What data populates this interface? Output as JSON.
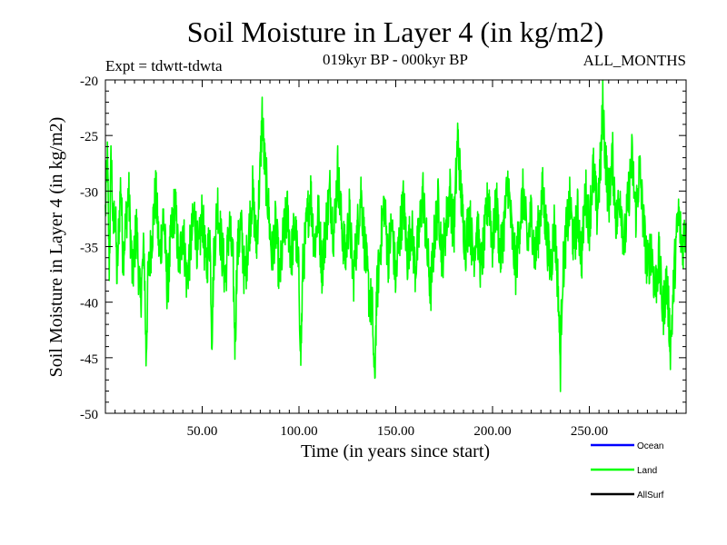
{
  "chart_data": {
    "type": "line",
    "title": "Soil Moisture in Layer 4 (in kg/m2)",
    "subtitle_left": "Expt = tdwtt-tdwta",
    "subtitle_center": "019kyr BP - 000kyr BP",
    "subtitle_right": "ALL_MONTHS",
    "xlabel": "Time (in years since start)",
    "ylabel": "Soil Moisture in Layer 4 (in kg/m2)",
    "xlim": [
      0,
      300
    ],
    "ylim": [
      -50,
      -20
    ],
    "xticks": [
      50,
      100,
      150,
      200,
      250
    ],
    "xtick_labels": [
      "50.00",
      "100.00",
      "150.00",
      "200.00",
      "250.00"
    ],
    "yticks": [
      -20,
      -25,
      -30,
      -35,
      -40,
      -45,
      -50
    ],
    "ytick_labels": [
      "-20",
      "-25",
      "-30",
      "-35",
      "-40",
      "-45",
      "-50"
    ],
    "legend": [
      {
        "name": "Ocean",
        "color": "#0000ff"
      },
      {
        "name": "Land",
        "color": "#00ff00"
      },
      {
        "name": "AllSurf",
        "color": "#000000"
      }
    ],
    "series": [
      {
        "name": "Land",
        "color": "#00ff00",
        "anchors": [
          [
            0,
            -32
          ],
          [
            1,
            -27
          ],
          [
            2,
            -37
          ],
          [
            3,
            -26
          ],
          [
            4,
            -34
          ],
          [
            5,
            -31
          ],
          [
            6,
            -38
          ],
          [
            7,
            -33
          ],
          [
            8,
            -29
          ],
          [
            9,
            -36
          ],
          [
            10,
            -34
          ],
          [
            12,
            -30
          ],
          [
            14,
            -38
          ],
          [
            16,
            -33
          ],
          [
            18,
            -40
          ],
          [
            20,
            -35
          ],
          [
            21,
            -45
          ],
          [
            22,
            -38
          ],
          [
            24,
            -34
          ],
          [
            26,
            -30
          ],
          [
            28,
            -36
          ],
          [
            30,
            -32
          ],
          [
            32,
            -39
          ],
          [
            34,
            -34
          ],
          [
            36,
            -31
          ],
          [
            38,
            -37
          ],
          [
            40,
            -33
          ],
          [
            42,
            -38
          ],
          [
            44,
            -35
          ],
          [
            46,
            -32
          ],
          [
            48,
            -36
          ],
          [
            50,
            -32
          ],
          [
            52,
            -37
          ],
          [
            54,
            -34
          ],
          [
            55,
            -43
          ],
          [
            56,
            -36
          ],
          [
            58,
            -31
          ],
          [
            60,
            -35
          ],
          [
            62,
            -38
          ],
          [
            64,
            -33
          ],
          [
            66,
            -37
          ],
          [
            67,
            -44
          ],
          [
            68,
            -36
          ],
          [
            70,
            -33
          ],
          [
            72,
            -38
          ],
          [
            74,
            -34
          ],
          [
            76,
            -30
          ],
          [
            78,
            -35
          ],
          [
            80,
            -28
          ],
          [
            81,
            -23
          ],
          [
            82,
            -27
          ],
          [
            84,
            -31
          ],
          [
            86,
            -36
          ],
          [
            88,
            -33
          ],
          [
            90,
            -38
          ],
          [
            92,
            -34
          ],
          [
            94,
            -32
          ],
          [
            96,
            -36
          ],
          [
            98,
            -33
          ],
          [
            100,
            -38
          ],
          [
            101,
            -45
          ],
          [
            102,
            -37
          ],
          [
            104,
            -33
          ],
          [
            106,
            -30
          ],
          [
            108,
            -35
          ],
          [
            110,
            -32
          ],
          [
            112,
            -37
          ],
          [
            114,
            -33
          ],
          [
            116,
            -30
          ],
          [
            118,
            -34
          ],
          [
            120,
            -28
          ],
          [
            122,
            -33
          ],
          [
            124,
            -36
          ],
          [
            126,
            -32
          ],
          [
            128,
            -38
          ],
          [
            130,
            -34
          ],
          [
            132,
            -30
          ],
          [
            134,
            -35
          ],
          [
            136,
            -39
          ],
          [
            138,
            -41
          ],
          [
            139,
            -48
          ],
          [
            140,
            -40
          ],
          [
            142,
            -35
          ],
          [
            144,
            -31
          ],
          [
            146,
            -36
          ],
          [
            148,
            -33
          ],
          [
            150,
            -38
          ],
          [
            152,
            -34
          ],
          [
            154,
            -31
          ],
          [
            156,
            -36
          ],
          [
            158,
            -33
          ],
          [
            160,
            -37
          ],
          [
            162,
            -34
          ],
          [
            164,
            -30
          ],
          [
            166,
            -35
          ],
          [
            168,
            -39
          ],
          [
            170,
            -34
          ],
          [
            172,
            -31
          ],
          [
            174,
            -36
          ],
          [
            176,
            -33
          ],
          [
            178,
            -30
          ],
          [
            180,
            -34
          ],
          [
            182,
            -25
          ],
          [
            184,
            -31
          ],
          [
            186,
            -35
          ],
          [
            188,
            -32
          ],
          [
            190,
            -36
          ],
          [
            192,
            -33
          ],
          [
            194,
            -37
          ],
          [
            196,
            -34
          ],
          [
            198,
            -30
          ],
          [
            200,
            -35
          ],
          [
            202,
            -31
          ],
          [
            204,
            -36
          ],
          [
            206,
            -33
          ],
          [
            208,
            -29
          ],
          [
            210,
            -34
          ],
          [
            212,
            -37
          ],
          [
            214,
            -33
          ],
          [
            216,
            -30
          ],
          [
            218,
            -35
          ],
          [
            220,
            -32
          ],
          [
            222,
            -36
          ],
          [
            224,
            -33
          ],
          [
            226,
            -30
          ],
          [
            228,
            -34
          ],
          [
            230,
            -37
          ],
          [
            232,
            -33
          ],
          [
            234,
            -39
          ],
          [
            235,
            -46
          ],
          [
            236,
            -38
          ],
          [
            238,
            -34
          ],
          [
            240,
            -31
          ],
          [
            242,
            -35
          ],
          [
            244,
            -32
          ],
          [
            246,
            -36
          ],
          [
            248,
            -30
          ],
          [
            250,
            -33
          ],
          [
            252,
            -28
          ],
          [
            254,
            -32
          ],
          [
            256,
            -27
          ],
          [
            257,
            -22
          ],
          [
            258,
            -26
          ],
          [
            260,
            -31
          ],
          [
            262,
            -27
          ],
          [
            264,
            -33
          ],
          [
            266,
            -30
          ],
          [
            268,
            -35
          ],
          [
            270,
            -31
          ],
          [
            272,
            -27
          ],
          [
            274,
            -32
          ],
          [
            276,
            -28
          ],
          [
            278,
            -33
          ],
          [
            280,
            -37
          ],
          [
            282,
            -35
          ],
          [
            284,
            -39
          ],
          [
            286,
            -36
          ],
          [
            288,
            -41
          ],
          [
            290,
            -38
          ],
          [
            292,
            -44
          ],
          [
            294,
            -37
          ],
          [
            296,
            -32
          ],
          [
            298,
            -35
          ],
          [
            300,
            -33
          ]
        ]
      }
    ]
  }
}
